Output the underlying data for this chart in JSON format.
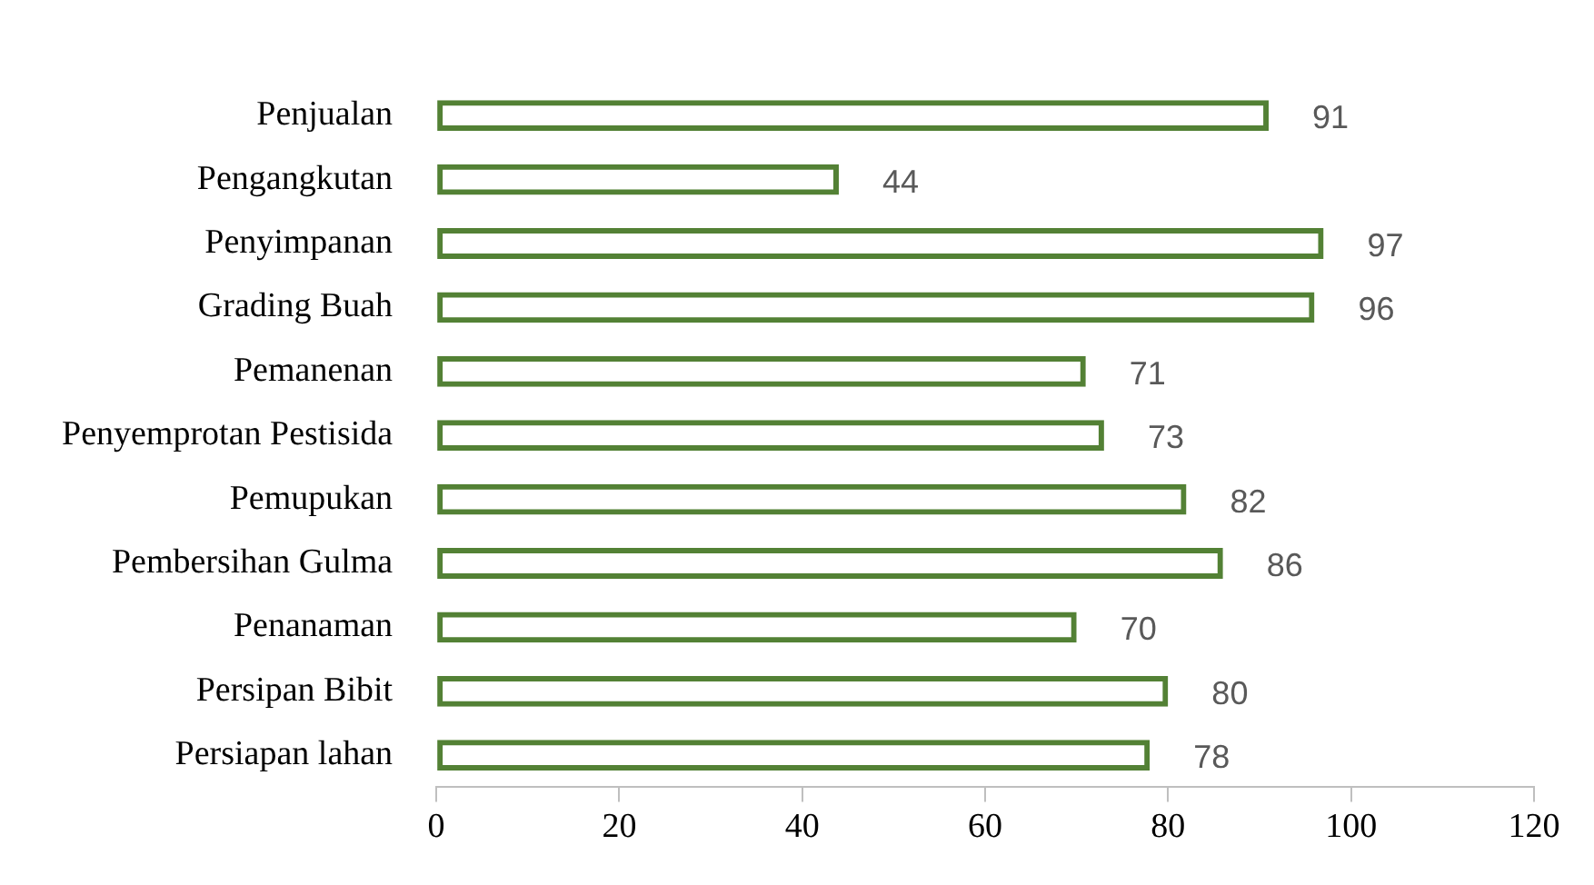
{
  "chart_data": {
    "type": "bar",
    "orientation": "horizontal",
    "categories": [
      "Penjualan",
      "Pengangkutan",
      "Penyimpanan",
      "Grading Buah",
      "Pemanenan",
      "Penyemprotan Pestisida",
      "Pemupukan",
      "Pembersihan Gulma",
      "Penanaman",
      "Persipan Bibit",
      "Persiapan lahan"
    ],
    "series": [
      {
        "color": "#538135",
        "values": [
          91,
          44,
          97,
          96,
          71,
          73,
          82,
          86,
          70,
          80,
          78
        ]
      }
    ],
    "xlim": [
      0,
      120
    ],
    "xticks": [
      0,
      20,
      40,
      60,
      80,
      100,
      120
    ],
    "data_labels": true,
    "grid": false,
    "legend": false
  }
}
